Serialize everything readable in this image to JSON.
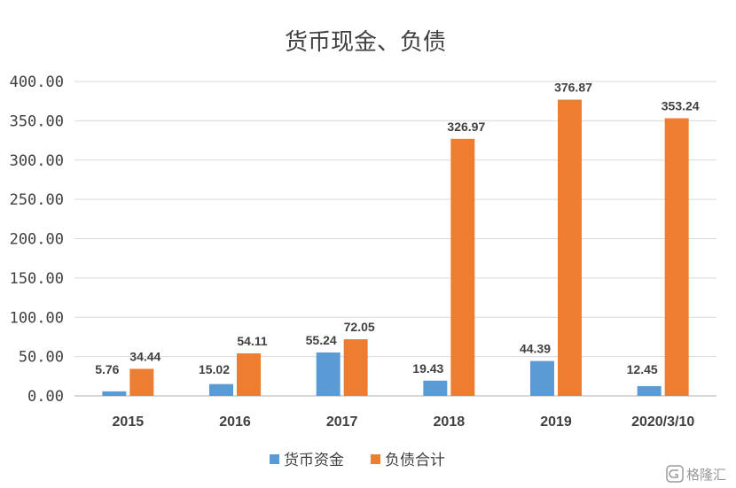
{
  "chart_data": {
    "type": "bar",
    "title": "货币现金、负债",
    "xlabel": "",
    "ylabel": "",
    "ylim": [
      0,
      400
    ],
    "yticks": [
      "0.00",
      "50.00",
      "100.00",
      "150.00",
      "200.00",
      "250.00",
      "300.00",
      "350.00",
      "400.00"
    ],
    "ytick_values": [
      0,
      50,
      100,
      150,
      200,
      250,
      300,
      350,
      400
    ],
    "categories": [
      "2015",
      "2016",
      "2017",
      "2018",
      "2019",
      "2020/3/10"
    ],
    "series": [
      {
        "name": "货币资金",
        "color": "#5b9bd5",
        "values": [
          5.76,
          15.02,
          55.24,
          19.43,
          44.39,
          12.45
        ],
        "labels": [
          "5.76",
          "15.02",
          "55.24",
          "19.43",
          "44.39",
          "12.45"
        ]
      },
      {
        "name": "负债合计",
        "color": "#ed7d31",
        "values": [
          34.44,
          54.11,
          72.05,
          326.97,
          376.87,
          353.24
        ],
        "labels": [
          "34.44",
          "54.11",
          "72.05",
          "326.97",
          "376.87",
          "353.24"
        ]
      }
    ],
    "grid": true,
    "legend_position": "bottom-center"
  },
  "watermark": {
    "text": "格隆汇",
    "icon": "g-logo-icon"
  }
}
